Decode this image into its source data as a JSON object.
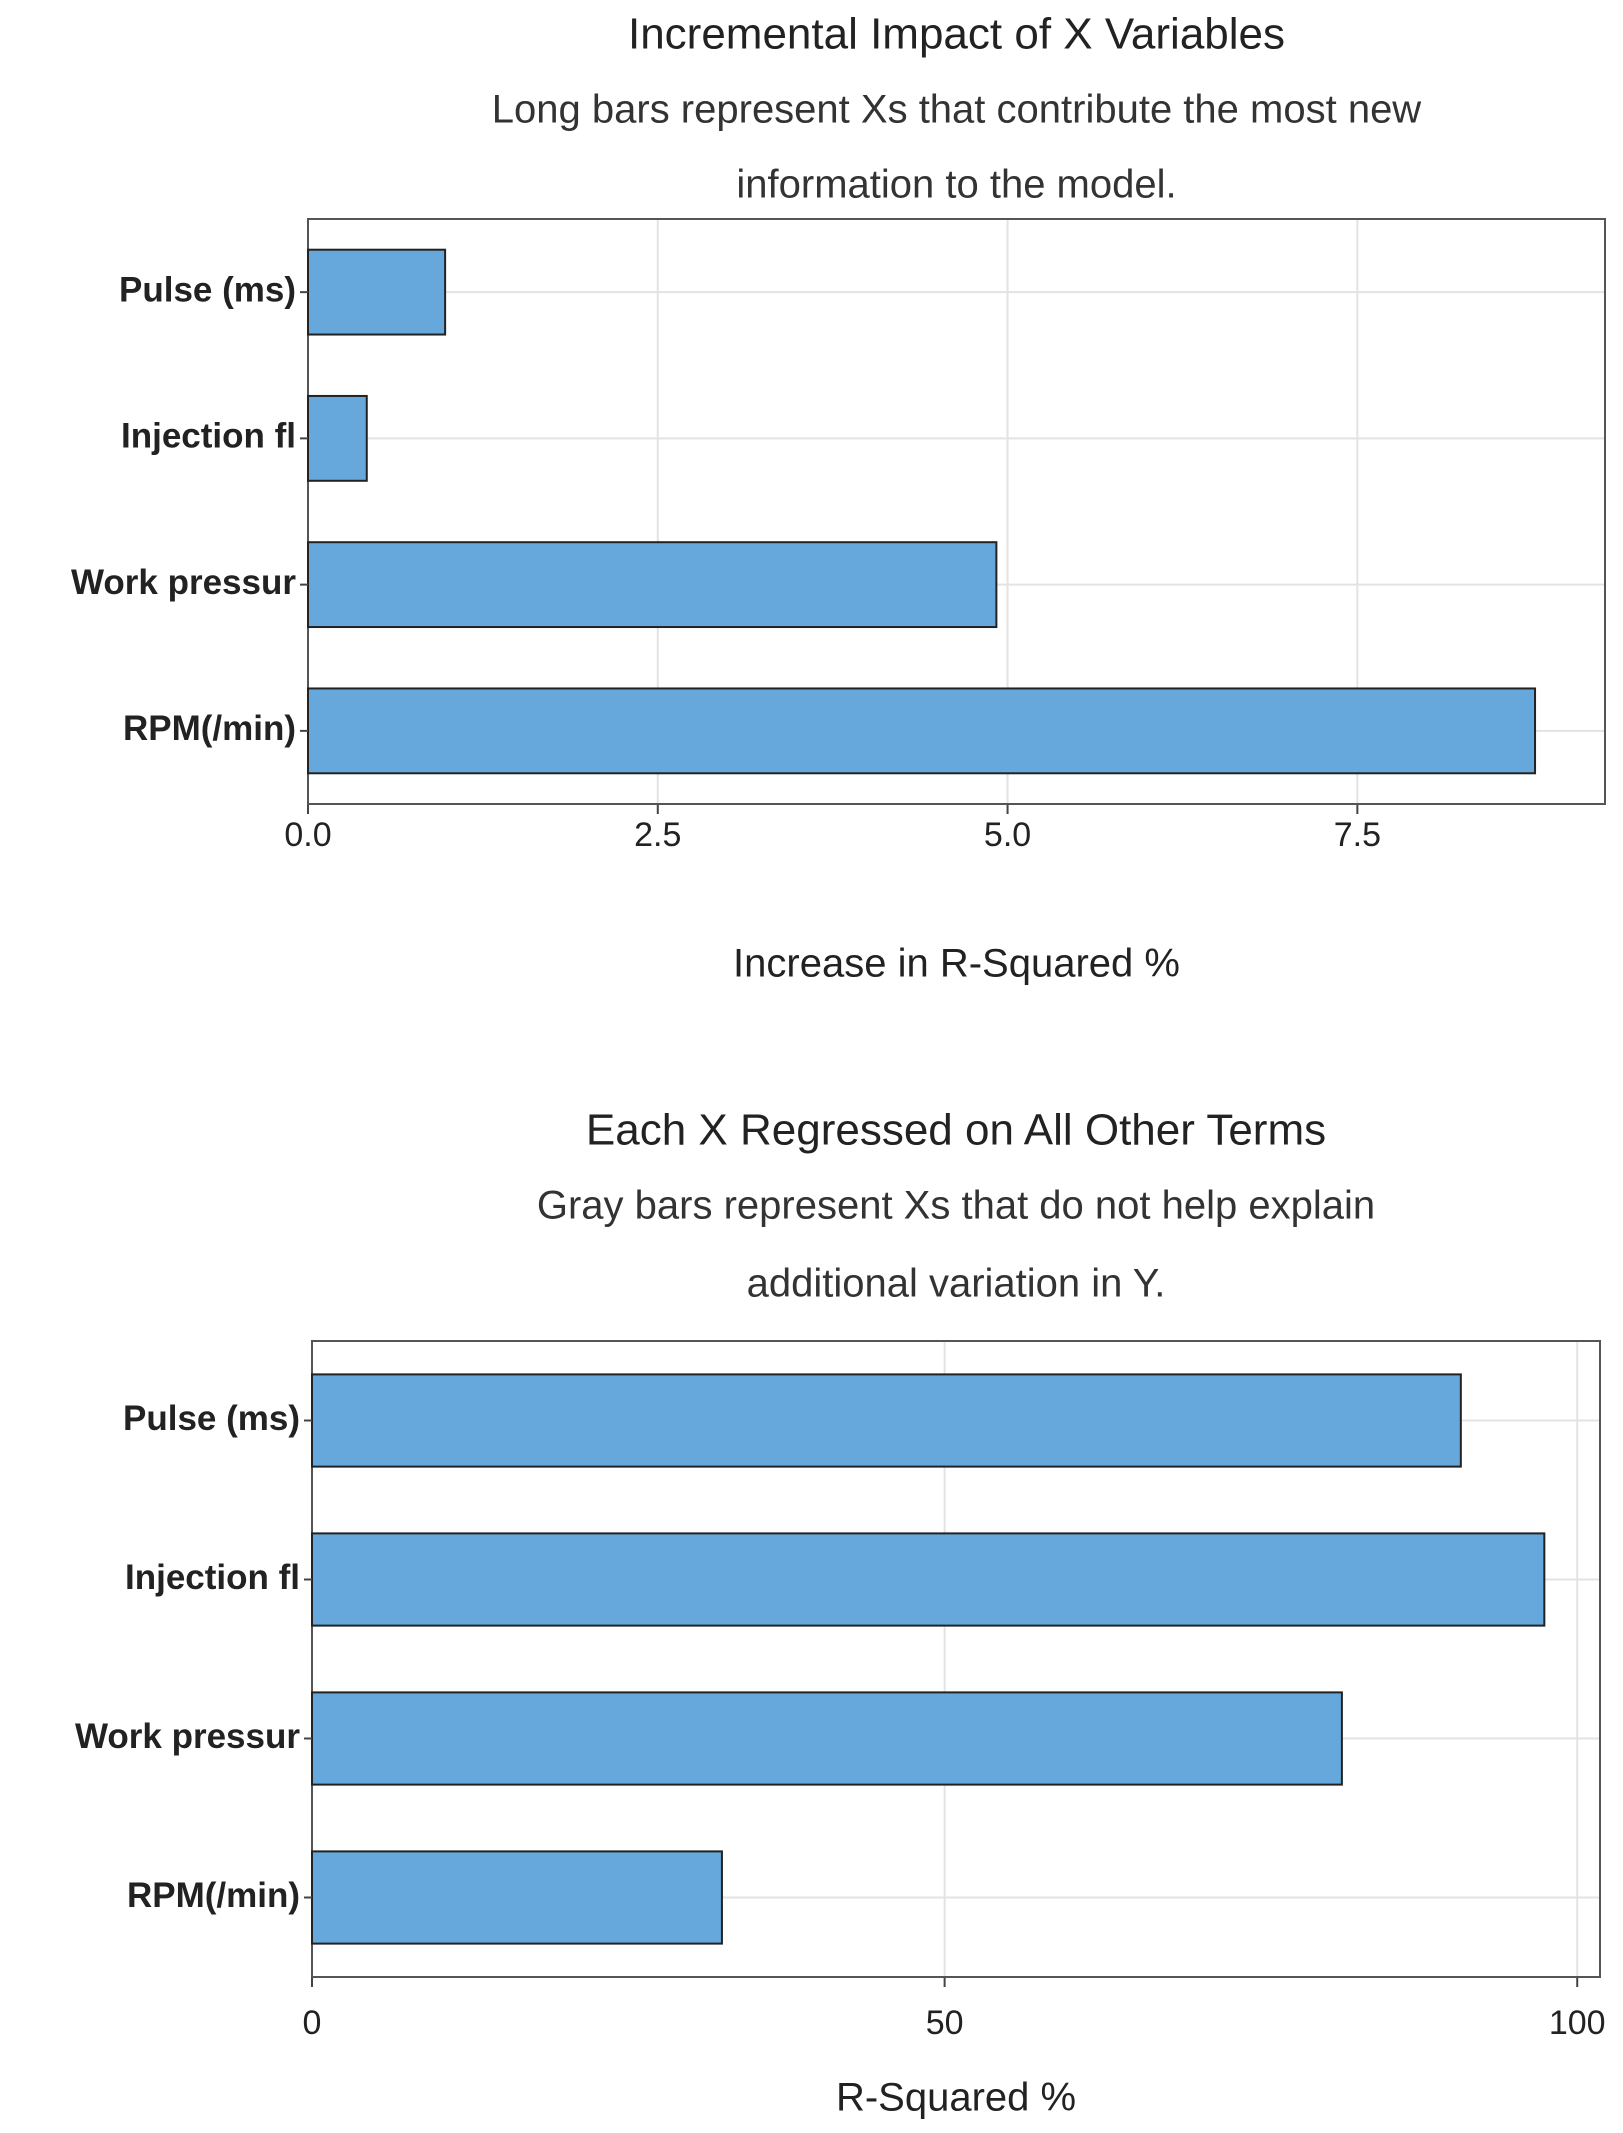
{
  "chart_data": [
    {
      "type": "bar",
      "orientation": "horizontal",
      "title": "Incremental Impact of X Variables",
      "subtitle": [
        "Long bars represent Xs that contribute the most new",
        "information to the model."
      ],
      "categories": [
        "Pulse (ms)",
        "Injection fl",
        "Work pressur",
        "RPM(/min)"
      ],
      "values": [
        0.98,
        0.42,
        4.92,
        8.77
      ],
      "color": "#66a8db",
      "xlabel": "Increase in R-Squared %",
      "xlim": [
        0,
        9.27
      ],
      "xticks": [
        {
          "value": 0,
          "label": "0.0"
        },
        2.5,
        {
          "value": 5,
          "label": "5.0"
        },
        7.5
      ],
      "grid": true
    },
    {
      "type": "bar",
      "orientation": "horizontal",
      "title": "Each X Regressed on All Other Terms",
      "subtitle": [
        "Gray bars represent Xs that do not help explain",
        "additional variation in Y."
      ],
      "categories": [
        "Pulse (ms)",
        "Injection fl",
        "Work pressur",
        "RPM(/min)"
      ],
      "values": [
        90.8,
        97.4,
        81.4,
        32.4
      ],
      "color": "#66a8db",
      "xlabel": "R-Squared %",
      "xlim": [
        0,
        101.8
      ],
      "xticks": [
        0,
        50,
        100
      ],
      "grid": true
    }
  ]
}
